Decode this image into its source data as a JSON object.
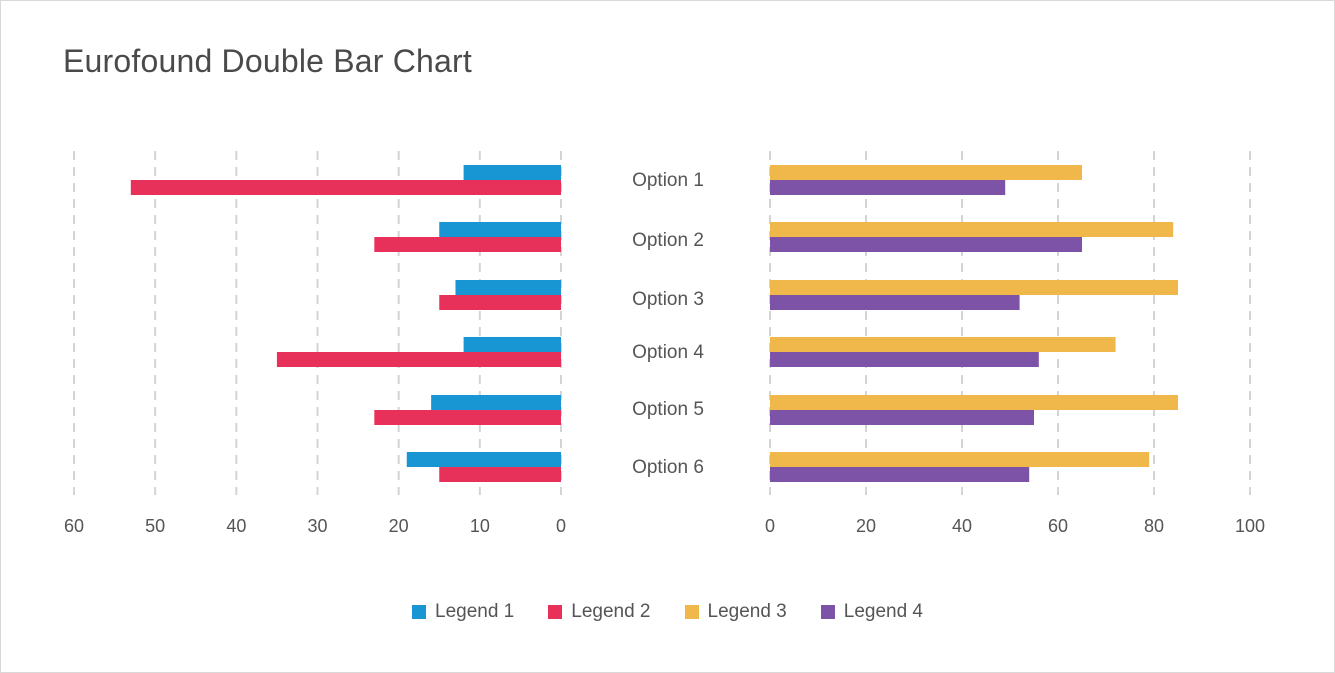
{
  "title": "Eurofound Double Bar Chart",
  "colors": {
    "legend1": "#1896d4",
    "legend2": "#e8315a",
    "legend3": "#f0b84a",
    "legend4": "#7c53a6",
    "grid": "#d4d4d4",
    "text": "#555555"
  },
  "chart_data": [
    {
      "type": "bar",
      "orientation": "horizontal",
      "direction": "right-to-left",
      "categories": [
        "Option 1",
        "Option 2",
        "Option 3",
        "Option 4",
        "Option 5",
        "Option 6"
      ],
      "series": [
        {
          "name": "Legend 1",
          "values": [
            12,
            15,
            13,
            12,
            16,
            19
          ]
        },
        {
          "name": "Legend 2",
          "values": [
            53,
            23,
            15,
            35,
            23,
            15
          ]
        }
      ],
      "xlim": [
        0,
        60
      ],
      "xticks": [
        "60",
        "50",
        "40",
        "30",
        "20",
        "10",
        "0"
      ],
      "grid": "dashed vertical"
    },
    {
      "type": "bar",
      "orientation": "horizontal",
      "direction": "left-to-right",
      "categories": [
        "Option 1",
        "Option 2",
        "Option 3",
        "Option 4",
        "Option 5",
        "Option 6"
      ],
      "series": [
        {
          "name": "Legend 3",
          "values": [
            65,
            84,
            85,
            72,
            85,
            79
          ]
        },
        {
          "name": "Legend 4",
          "values": [
            49,
            65,
            52,
            56,
            55,
            54
          ]
        }
      ],
      "xlim": [
        0,
        100
      ],
      "xticks": [
        "0",
        "20",
        "40",
        "60",
        "80",
        "100"
      ],
      "grid": "dashed vertical"
    }
  ],
  "legend": [
    {
      "label": "Legend 1",
      "color": "#1896d4"
    },
    {
      "label": "Legend 2",
      "color": "#e8315a"
    },
    {
      "label": "Legend 3",
      "color": "#f0b84a"
    },
    {
      "label": "Legend 4",
      "color": "#7c53a6"
    }
  ],
  "legend_position": "bottom-center"
}
